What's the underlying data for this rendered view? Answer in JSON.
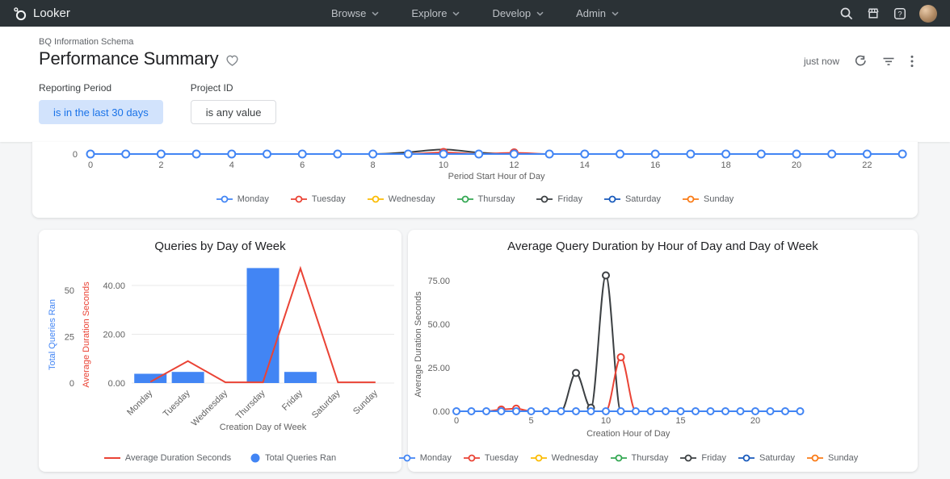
{
  "nav": {
    "brand": "Looker",
    "items": [
      {
        "label": "Browse"
      },
      {
        "label": "Explore"
      },
      {
        "label": "Develop"
      },
      {
        "label": "Admin"
      }
    ]
  },
  "header": {
    "breadcrumb": "BQ Information Schema",
    "title": "Performance Summary",
    "updated": "just now"
  },
  "filters": [
    {
      "label": "Reporting Period",
      "value": "is in the last 30 days",
      "active": true
    },
    {
      "label": "Project ID",
      "value": "is any value",
      "active": false
    }
  ],
  "days": [
    {
      "name": "Monday",
      "color": "#4285f4"
    },
    {
      "name": "Tuesday",
      "color": "#ea4335"
    },
    {
      "name": "Wednesday",
      "color": "#fbbc04"
    },
    {
      "name": "Thursday",
      "color": "#34a853"
    },
    {
      "name": "Friday",
      "color": "#3c4043"
    },
    {
      "name": "Saturday",
      "color": "#185abc"
    },
    {
      "name": "Sunday",
      "color": "#fa7b17"
    }
  ],
  "colors": {
    "accent_blue": "#1a73e8",
    "chip_bg": "#d2e3fc",
    "bar_blue": "#4285f4",
    "line_red": "#ea4335",
    "nav_bg": "#2b3236",
    "page_bg": "#f5f6f7"
  },
  "chart_data": [
    {
      "id": "queries-by-hour",
      "type": "line",
      "title": "",
      "xlabel": "Period Start Hour of Day",
      "x_ticks": [
        0,
        2,
        4,
        6,
        8,
        10,
        12,
        14,
        16,
        18,
        20,
        22
      ],
      "x_points": 24,
      "y_zero_label": "0",
      "ylim": [
        0,
        3
      ],
      "legend_position": "bottom",
      "series": [
        {
          "name": "Monday",
          "color": "#4285f4",
          "markers": true,
          "values": [
            0,
            0,
            0,
            0,
            0,
            0,
            0,
            0,
            0,
            0,
            0,
            0,
            0,
            0,
            0,
            0,
            0,
            0,
            0,
            0,
            0,
            0,
            0,
            0
          ]
        },
        {
          "name": "Tuesday",
          "color": "#ea4335",
          "values": [
            0,
            0,
            0,
            0,
            0,
            0,
            0,
            0,
            0,
            0,
            0.45,
            0,
            0.35,
            0,
            0,
            0,
            0,
            0,
            0,
            0,
            0,
            0,
            0,
            0
          ]
        },
        {
          "name": "Wednesday",
          "color": "#fbbc04",
          "values": [
            0,
            0,
            0,
            0,
            0,
            0,
            0,
            0,
            0,
            0,
            0,
            0,
            0,
            0,
            0,
            0,
            0,
            0,
            0,
            0,
            0,
            0,
            0,
            0
          ]
        },
        {
          "name": "Thursday",
          "color": "#34a853",
          "values": [
            0,
            0,
            0,
            0,
            0,
            0,
            0,
            0,
            0,
            0,
            0,
            0,
            0,
            0,
            0,
            0,
            0,
            0,
            0,
            0,
            0,
            0,
            0,
            0
          ]
        },
        {
          "name": "Friday",
          "color": "#3c4043",
          "markers": false,
          "values": [
            0,
            0,
            0,
            0,
            0,
            0,
            0,
            0,
            0,
            0.5,
            1.3,
            0.4,
            0,
            0,
            0,
            0,
            0,
            0,
            0,
            0,
            0,
            0,
            0,
            0
          ]
        },
        {
          "name": "Saturday",
          "color": "#185abc",
          "values": [
            0,
            0,
            0,
            0,
            0,
            0,
            0,
            0,
            0,
            0,
            0,
            0,
            0,
            0,
            0,
            0,
            0,
            0,
            0,
            0,
            0,
            0,
            0,
            0
          ]
        },
        {
          "name": "Sunday",
          "color": "#fa7b17",
          "values": [
            0,
            0,
            0,
            0,
            0,
            0,
            0,
            0,
            0,
            0,
            0,
            0,
            0,
            0,
            0,
            0,
            0,
            0,
            0,
            0,
            0,
            0,
            0,
            0
          ]
        }
      ]
    },
    {
      "id": "queries-by-day",
      "type": "bar",
      "title": "Queries by Day of Week",
      "xlabel": "Creation Day of Week",
      "categories": [
        "Monday",
        "Tuesday",
        "Wednesday",
        "Thursday",
        "Friday",
        "Saturday",
        "Sunday"
      ],
      "left_axis": {
        "label": "Total Queries Ran",
        "color": "#4285f4",
        "ticks": [
          0,
          25,
          50
        ]
      },
      "right_axis": {
        "label": "Average Duration Seconds",
        "color": "#ea4335",
        "ticks": [
          0,
          20,
          40
        ]
      },
      "bars": {
        "name": "Total Queries Ran",
        "color": "#4285f4",
        "values": [
          5,
          6,
          0,
          62,
          6,
          0,
          0
        ]
      },
      "line": {
        "name": "Average Duration Seconds",
        "color": "#ea4335",
        "values": [
          0.5,
          9,
          0.3,
          0.3,
          47,
          0.3,
          0.3
        ]
      },
      "legend": [
        {
          "label": "Average Duration Seconds",
          "marker": "line",
          "color": "#ea4335"
        },
        {
          "label": "Total Queries Ran",
          "marker": "dot",
          "color": "#4285f4"
        }
      ],
      "legend_position": "bottom",
      "grid": true
    },
    {
      "id": "duration-by-hour",
      "type": "line",
      "title": "Average Query Duration by Hour of Day and Day of Week",
      "xlabel": "Creation Hour of Day",
      "ylabel": "Average Duration Seconds",
      "x_ticks": [
        0,
        5,
        10,
        15,
        20
      ],
      "x_points": 24,
      "y_ticks": [
        0,
        25,
        50,
        75
      ],
      "ylim": [
        0,
        85
      ],
      "legend_position": "bottom",
      "series": [
        {
          "name": "Monday",
          "color": "#4285f4",
          "markers": true,
          "values": [
            0,
            0,
            0,
            0,
            0,
            0,
            0,
            0,
            0,
            0,
            0,
            0,
            0,
            0,
            0,
            0,
            0,
            0,
            0,
            0,
            0,
            0,
            0,
            0
          ]
        },
        {
          "name": "Tuesday",
          "color": "#ea4335",
          "values": [
            0,
            0,
            0,
            1,
            1.5,
            0,
            0,
            0,
            0,
            0,
            0,
            31,
            0,
            0,
            0,
            0,
            0,
            0,
            0,
            0,
            0,
            0,
            0,
            0
          ]
        },
        {
          "name": "Wednesday",
          "color": "#fbbc04",
          "values": [
            0,
            0,
            0,
            0,
            0,
            0,
            0,
            0,
            0,
            0,
            0,
            0,
            0,
            0,
            0,
            0,
            0,
            0,
            0,
            0,
            0,
            0,
            0,
            0
          ]
        },
        {
          "name": "Thursday",
          "color": "#34a853",
          "values": [
            0,
            0,
            0,
            0,
            0,
            0,
            0,
            0,
            0,
            0,
            0,
            0,
            0,
            0,
            0,
            0,
            0,
            0,
            0,
            0,
            0,
            0,
            0,
            0
          ]
        },
        {
          "name": "Friday",
          "color": "#3c4043",
          "values": [
            0,
            0,
            0,
            0,
            0,
            0,
            0,
            0,
            22,
            2,
            78,
            0,
            0,
            0,
            0,
            0,
            0,
            0,
            0,
            0,
            0,
            0,
            0,
            0
          ]
        },
        {
          "name": "Saturday",
          "color": "#185abc",
          "values": [
            0,
            0,
            0,
            0,
            0,
            0,
            0,
            0,
            0,
            0,
            0,
            0,
            0,
            0,
            0,
            0,
            0,
            0,
            0,
            0,
            0,
            0,
            0,
            0
          ]
        },
        {
          "name": "Sunday",
          "color": "#fa7b17",
          "values": [
            0,
            0,
            0,
            0,
            0,
            0,
            0,
            0,
            0,
            0,
            0,
            0,
            0,
            0,
            0,
            0,
            0,
            0,
            0,
            0,
            0,
            0,
            0,
            0
          ]
        }
      ]
    }
  ]
}
